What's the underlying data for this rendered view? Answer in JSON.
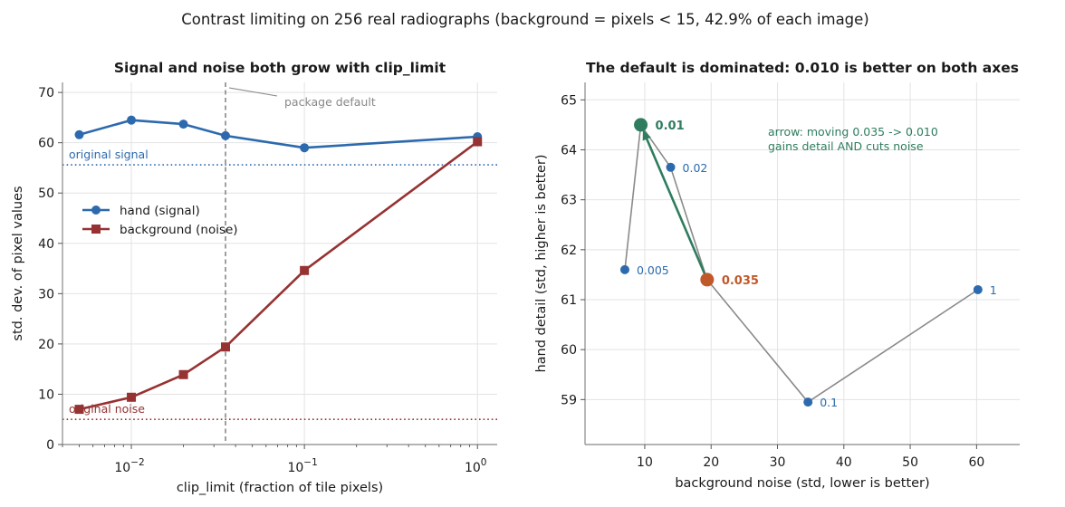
{
  "figure": {
    "title": "Contrast limiting on 256 real radiographs (background = pixels < 15, 42.9% of each image)"
  },
  "colors": {
    "signal": "#2d6aad",
    "noise": "#963232",
    "best": "#2e7d5e",
    "default": "#c0582a",
    "path": "#8a8a8a",
    "annotation_gray": "#888888"
  },
  "chart_data": [
    {
      "type": "line",
      "title": "Signal and noise both grow with clip_limit",
      "xlabel": "clip_limit  (fraction of tile pixels)",
      "ylabel": "std. dev. of pixel values",
      "xscale": "log",
      "xlim": [
        0.004,
        1.3
      ],
      "ylim": [
        0,
        72
      ],
      "x": [
        0.005,
        0.01,
        0.02,
        0.035,
        0.1,
        1
      ],
      "x_tick_values": [
        0.01,
        0.1,
        1
      ],
      "x_tick_labels": [
        "10",
        "10",
        "10"
      ],
      "x_tick_exponents": [
        "−2",
        "−1",
        "0"
      ],
      "y_ticks": [
        0,
        10,
        20,
        30,
        40,
        50,
        60,
        70
      ],
      "series": [
        {
          "name": "hand (signal)",
          "marker": "circle",
          "values": [
            61.6,
            64.5,
            63.7,
            61.4,
            59.0,
            61.2
          ]
        },
        {
          "name": "background (noise)",
          "marker": "square",
          "values": [
            7.0,
            9.4,
            13.9,
            19.4,
            34.6,
            60.2
          ]
        }
      ],
      "reference_lines": [
        {
          "label": "original signal",
          "y": 55.6
        },
        {
          "label": "original noise",
          "y": 5.0
        }
      ],
      "vline": {
        "x": 0.035,
        "label": "package default"
      },
      "legend": "center-left",
      "grid": true
    },
    {
      "type": "scatter",
      "title": "The default is dominated: 0.010 is better on both axes",
      "xlabel": "background noise  (std, lower is better)",
      "ylabel": "hand detail  (std, higher is better)",
      "xlim": [
        1,
        66.5
      ],
      "ylim": [
        58.1,
        65.35
      ],
      "x_ticks": [
        10,
        20,
        30,
        40,
        50,
        60
      ],
      "y_ticks": [
        59,
        60,
        61,
        62,
        63,
        64,
        65
      ],
      "points": [
        {
          "label": "0.005",
          "x": 7.0,
          "y": 61.6
        },
        {
          "label": "0.01",
          "x": 9.4,
          "y": 64.5,
          "highlight": "best"
        },
        {
          "label": "0.02",
          "x": 13.9,
          "y": 63.65
        },
        {
          "label": "0.035",
          "x": 19.4,
          "y": 61.4,
          "highlight": "default"
        },
        {
          "label": "0.1",
          "x": 34.6,
          "y": 58.95
        },
        {
          "label": "1",
          "x": 60.2,
          "y": 61.2
        }
      ],
      "arrow": {
        "from": [
          19.4,
          61.4
        ],
        "to": [
          9.4,
          64.5
        ]
      },
      "annotation_lines": [
        "arrow: moving 0.035 -> 0.010",
        "gains detail AND cuts noise"
      ],
      "grid": true
    }
  ]
}
